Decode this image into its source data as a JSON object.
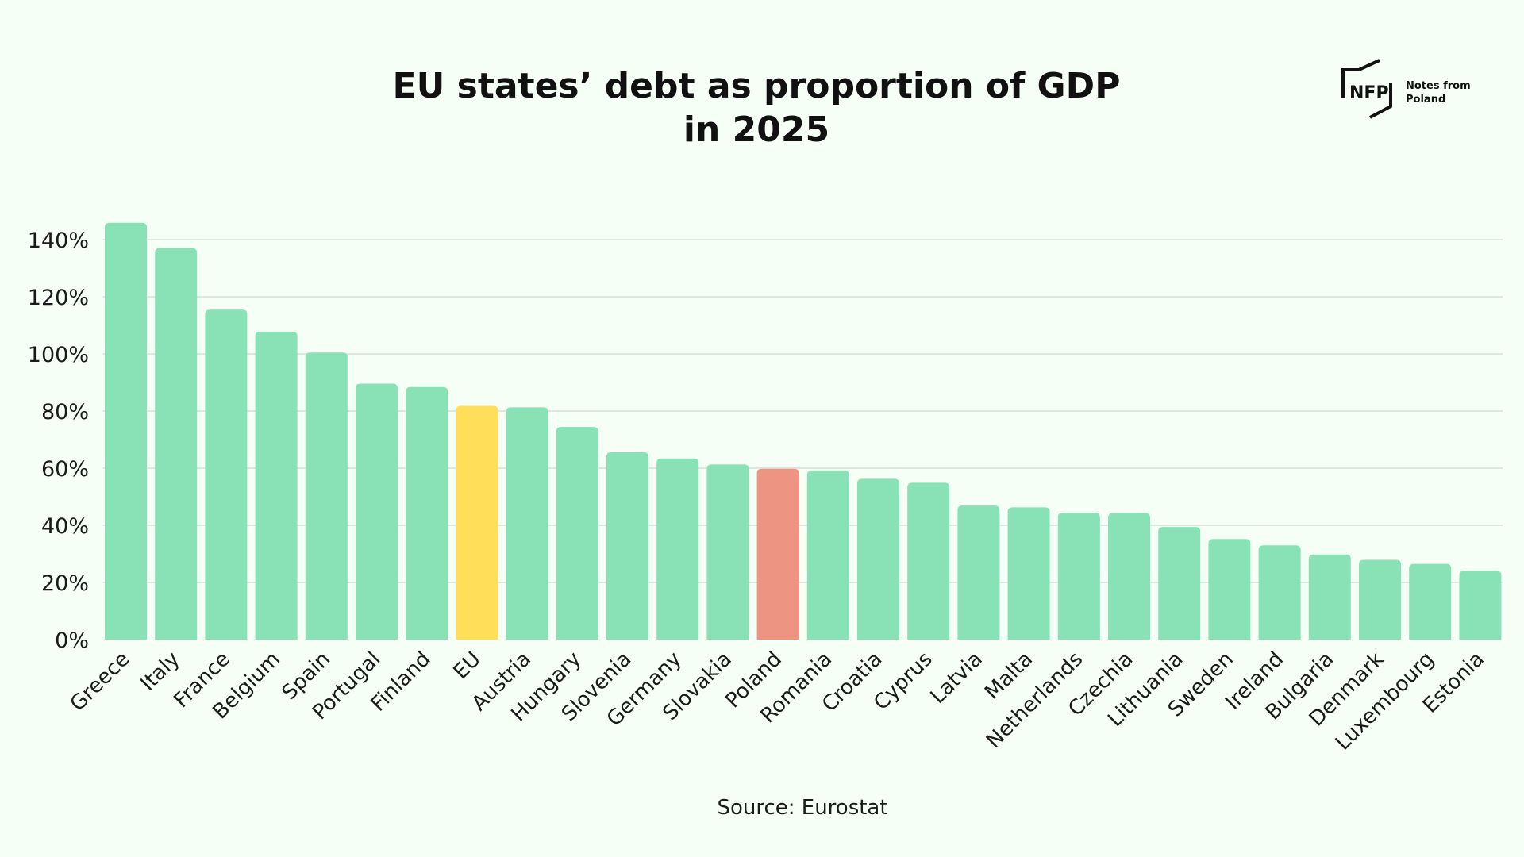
{
  "chart_data": {
    "type": "bar",
    "title_lines": [
      "EU states’ debt as proportion of GDP",
      "in 2025"
    ],
    "source": "Source: Eurostat",
    "xlabel": "",
    "ylabel": "",
    "ylim": [
      0,
      140
    ],
    "yticks": [
      0,
      20,
      40,
      60,
      80,
      100,
      120,
      140
    ],
    "ytick_labels": [
      "0%",
      "20%",
      "40%",
      "60%",
      "80%",
      "100%",
      "120%",
      "140%"
    ],
    "grid": true,
    "categories": [
      "Greece",
      "Italy",
      "France",
      "Belgium",
      "Spain",
      "Portugal",
      "Finland",
      "EU",
      "Austria",
      "Hungary",
      "Slovenia",
      "Germany",
      "Slovakia",
      "Poland",
      "Romania",
      "Croatia",
      "Cyprus",
      "Latvia",
      "Malta",
      "Netherlands",
      "Czechia",
      "Lithuania",
      "Sweden",
      "Ireland",
      "Bulgaria",
      "Denmark",
      "Luxembourg",
      "Estonia"
    ],
    "values": [
      145.9,
      137.0,
      115.5,
      107.8,
      100.5,
      89.6,
      88.4,
      81.8,
      81.3,
      74.4,
      65.6,
      63.4,
      61.3,
      59.8,
      59.2,
      56.3,
      54.9,
      46.9,
      46.3,
      44.4,
      44.3,
      39.4,
      35.2,
      33.0,
      29.8,
      27.9,
      26.5,
      24.1
    ],
    "colors": {
      "default": "#89e1b6",
      "EU": "#ffde59",
      "Poland": "#ee9482",
      "grid": "#d9ddd9"
    }
  },
  "logo": {
    "mark": "NFP",
    "text_lines": [
      "Notes from",
      "Poland"
    ]
  }
}
